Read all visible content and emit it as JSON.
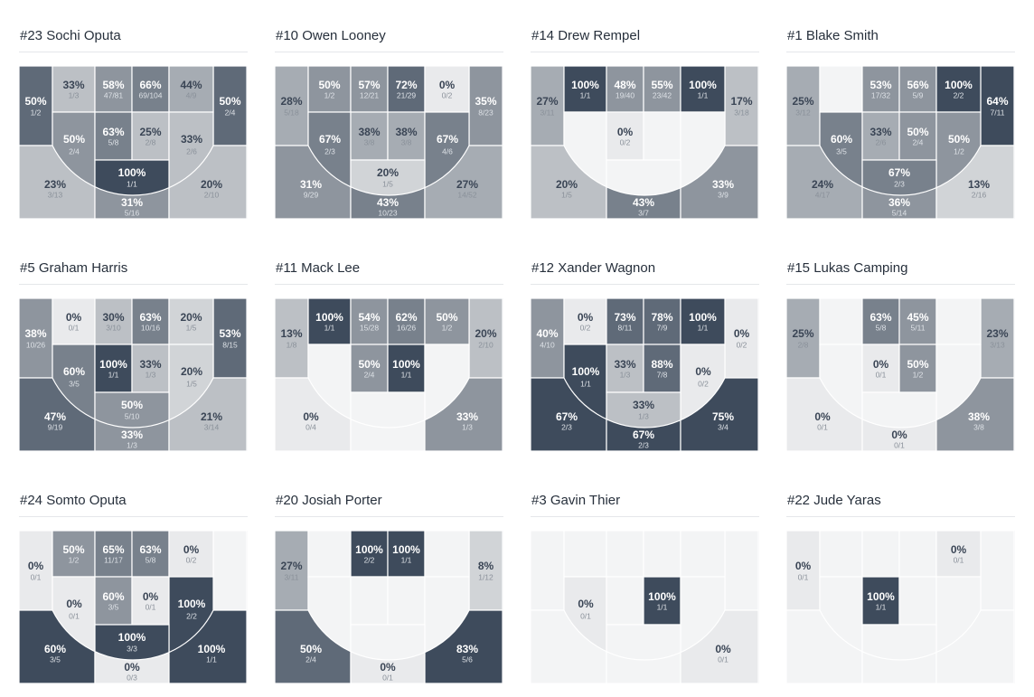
{
  "palette": {
    "0": "#f3f4f5",
    "1": "#e9eaec",
    "2": "#d1d4d7",
    "3": "#bcc0c5",
    "4": "#a6acb3",
    "5": "#8e959e",
    "6": "#78818c",
    "7": "#5f6a78",
    "8": "#3e4b5c"
  },
  "text_colors": {
    "dark_pct": "#3a4555",
    "dark_frac": "#8a919a",
    "light_pct": "#ffffff",
    "light_frac": "#dde1e6"
  },
  "players": [
    {
      "name": "#23 Sochi Oputa",
      "zones": {
        "lc": {
          "pct": "50%",
          "shots": "1/2",
          "shade": 7
        },
        "t1": {
          "pct": "33%",
          "shots": "1/3",
          "shade": 3
        },
        "t2": {
          "pct": "58%",
          "shots": "47/81",
          "shade": 5
        },
        "t3": {
          "pct": "66%",
          "shots": "69/104",
          "shade": 6
        },
        "t4": {
          "pct": "44%",
          "shots": "4/9",
          "shade": 4
        },
        "rc": {
          "pct": "50%",
          "shots": "2/4",
          "shade": 7
        },
        "lm": {
          "pct": "50%",
          "shots": "2/4",
          "shade": 5
        },
        "p1": {
          "pct": "63%",
          "shots": "5/8",
          "shade": 6
        },
        "p2": {
          "pct": "25%",
          "shots": "2/8",
          "shade": 3
        },
        "rm": {
          "pct": "33%",
          "shots": "2/6",
          "shade": 3
        },
        "cb": {
          "pct": "100%",
          "shots": "1/1",
          "shade": 8
        },
        "lw": {
          "pct": "23%",
          "shots": "3/13",
          "shade": 3
        },
        "tk": {
          "pct": "31%",
          "shots": "5/16",
          "shade": 5
        },
        "rw": {
          "pct": "20%",
          "shots": "2/10",
          "shade": 3
        }
      }
    },
    {
      "name": "#10 Owen Looney",
      "zones": {
        "lc": {
          "pct": "28%",
          "shots": "5/18",
          "shade": 4
        },
        "t1": {
          "pct": "50%",
          "shots": "1/2",
          "shade": 5
        },
        "t2": {
          "pct": "57%",
          "shots": "12/21",
          "shade": 5
        },
        "t3": {
          "pct": "72%",
          "shots": "21/29",
          "shade": 7
        },
        "t4": {
          "pct": "0%",
          "shots": "0/2",
          "shade": 1
        },
        "rc": {
          "pct": "35%",
          "shots": "8/23",
          "shade": 5
        },
        "lm": {
          "pct": "67%",
          "shots": "2/3",
          "shade": 6
        },
        "p1": {
          "pct": "38%",
          "shots": "3/8",
          "shade": 4
        },
        "p2": {
          "pct": "38%",
          "shots": "3/8",
          "shade": 4
        },
        "rm": {
          "pct": "67%",
          "shots": "4/6",
          "shade": 6
        },
        "cb": {
          "pct": "20%",
          "shots": "1/5",
          "shade": 2
        },
        "lw": {
          "pct": "31%",
          "shots": "9/29",
          "shade": 5
        },
        "tk": {
          "pct": "43%",
          "shots": "10/23",
          "shade": 6
        },
        "rw": {
          "pct": "27%",
          "shots": "14/52",
          "shade": 4
        }
      }
    },
    {
      "name": "#14 Drew Rempel",
      "zones": {
        "lc": {
          "pct": "27%",
          "shots": "3/11",
          "shade": 4
        },
        "t1": {
          "pct": "100%",
          "shots": "1/1",
          "shade": 8
        },
        "t2": {
          "pct": "48%",
          "shots": "19/40",
          "shade": 5
        },
        "t3": {
          "pct": "55%",
          "shots": "23/42",
          "shade": 5
        },
        "t4": {
          "pct": "100%",
          "shots": "1/1",
          "shade": 8
        },
        "rc": {
          "pct": "17%",
          "shots": "3/18",
          "shade": 3
        },
        "p1": {
          "pct": "0%",
          "shots": "0/2",
          "shade": 1
        },
        "lw": {
          "pct": "20%",
          "shots": "1/5",
          "shade": 3
        },
        "tk": {
          "pct": "43%",
          "shots": "3/7",
          "shade": 6
        },
        "rw": {
          "pct": "33%",
          "shots": "3/9",
          "shade": 5
        }
      }
    },
    {
      "name": "#1 Blake Smith",
      "zones": {
        "lc": {
          "pct": "25%",
          "shots": "3/12",
          "shade": 4
        },
        "t2": {
          "pct": "53%",
          "shots": "17/32",
          "shade": 5
        },
        "t3": {
          "pct": "56%",
          "shots": "5/9",
          "shade": 5
        },
        "t4": {
          "pct": "100%",
          "shots": "2/2",
          "shade": 8
        },
        "rc": {
          "pct": "64%",
          "shots": "7/11",
          "shade": 8
        },
        "lm": {
          "pct": "60%",
          "shots": "3/5",
          "shade": 6
        },
        "p1": {
          "pct": "33%",
          "shots": "2/6",
          "shade": 4
        },
        "p2": {
          "pct": "50%",
          "shots": "2/4",
          "shade": 5
        },
        "rm": {
          "pct": "50%",
          "shots": "1/2",
          "shade": 5
        },
        "cb": {
          "pct": "67%",
          "shots": "2/3",
          "shade": 6
        },
        "lw": {
          "pct": "24%",
          "shots": "4/17",
          "shade": 4
        },
        "tk": {
          "pct": "36%",
          "shots": "5/14",
          "shade": 5
        },
        "rw": {
          "pct": "13%",
          "shots": "2/16",
          "shade": 2
        }
      }
    },
    {
      "name": "#5 Graham Harris",
      "zones": {
        "lc": {
          "pct": "38%",
          "shots": "10/26",
          "shade": 5
        },
        "t1": {
          "pct": "0%",
          "shots": "0/1",
          "shade": 1
        },
        "t2": {
          "pct": "30%",
          "shots": "3/10",
          "shade": 3
        },
        "t3": {
          "pct": "63%",
          "shots": "10/16",
          "shade": 6
        },
        "t4": {
          "pct": "20%",
          "shots": "1/5",
          "shade": 2
        },
        "rc": {
          "pct": "53%",
          "shots": "8/15",
          "shade": 7
        },
        "lm": {
          "pct": "60%",
          "shots": "3/5",
          "shade": 6
        },
        "p1": {
          "pct": "100%",
          "shots": "1/1",
          "shade": 8
        },
        "p2": {
          "pct": "33%",
          "shots": "1/3",
          "shade": 3
        },
        "rm": {
          "pct": "20%",
          "shots": "1/5",
          "shade": 2
        },
        "cb": {
          "pct": "50%",
          "shots": "5/10",
          "shade": 5
        },
        "lw": {
          "pct": "47%",
          "shots": "9/19",
          "shade": 7
        },
        "tk": {
          "pct": "33%",
          "shots": "1/3",
          "shade": 5
        },
        "rw": {
          "pct": "21%",
          "shots": "3/14",
          "shade": 3
        }
      }
    },
    {
      "name": "#11 Mack Lee",
      "zones": {
        "lc": {
          "pct": "13%",
          "shots": "1/8",
          "shade": 3
        },
        "t1": {
          "pct": "100%",
          "shots": "1/1",
          "shade": 8
        },
        "t2": {
          "pct": "54%",
          "shots": "15/28",
          "shade": 5
        },
        "t3": {
          "pct": "62%",
          "shots": "16/26",
          "shade": 6
        },
        "t4": {
          "pct": "50%",
          "shots": "1/2",
          "shade": 5
        },
        "rc": {
          "pct": "20%",
          "shots": "2/10",
          "shade": 3
        },
        "p1": {
          "pct": "50%",
          "shots": "2/4",
          "shade": 5
        },
        "p2": {
          "pct": "100%",
          "shots": "1/1",
          "shade": 8
        },
        "lw": {
          "pct": "0%",
          "shots": "0/4",
          "shade": 1
        },
        "rw": {
          "pct": "33%",
          "shots": "1/3",
          "shade": 5
        }
      }
    },
    {
      "name": "#12 Xander Wagnon",
      "zones": {
        "lc": {
          "pct": "40%",
          "shots": "4/10",
          "shade": 5
        },
        "t1": {
          "pct": "0%",
          "shots": "0/2",
          "shade": 1
        },
        "t2": {
          "pct": "73%",
          "shots": "8/11",
          "shade": 7
        },
        "t3": {
          "pct": "78%",
          "shots": "7/9",
          "shade": 7
        },
        "t4": {
          "pct": "100%",
          "shots": "1/1",
          "shade": 8
        },
        "rc": {
          "pct": "0%",
          "shots": "0/2",
          "shade": 1
        },
        "lm": {
          "pct": "100%",
          "shots": "1/1",
          "shade": 8
        },
        "p1": {
          "pct": "33%",
          "shots": "1/3",
          "shade": 3
        },
        "p2": {
          "pct": "88%",
          "shots": "7/8",
          "shade": 7
        },
        "rm": {
          "pct": "0%",
          "shots": "0/2",
          "shade": 1
        },
        "cb": {
          "pct": "33%",
          "shots": "1/3",
          "shade": 3
        },
        "lw": {
          "pct": "67%",
          "shots": "2/3",
          "shade": 8
        },
        "tk": {
          "pct": "67%",
          "shots": "2/3",
          "shade": 8
        },
        "rw": {
          "pct": "75%",
          "shots": "3/4",
          "shade": 8
        }
      }
    },
    {
      "name": "#15 Lukas Camping",
      "zones": {
        "lc": {
          "pct": "25%",
          "shots": "2/8",
          "shade": 4
        },
        "t2": {
          "pct": "63%",
          "shots": "5/8",
          "shade": 6
        },
        "t3": {
          "pct": "45%",
          "shots": "5/11",
          "shade": 5
        },
        "rc": {
          "pct": "23%",
          "shots": "3/13",
          "shade": 4
        },
        "p1": {
          "pct": "0%",
          "shots": "0/1",
          "shade": 1
        },
        "p2": {
          "pct": "50%",
          "shots": "1/2",
          "shade": 5
        },
        "lw": {
          "pct": "0%",
          "shots": "0/1",
          "shade": 1
        },
        "tk": {
          "pct": "0%",
          "shots": "0/1",
          "shade": 1
        },
        "rw": {
          "pct": "38%",
          "shots": "3/8",
          "shade": 5
        }
      }
    },
    {
      "name": "#24 Somto Oputa",
      "zones": {
        "lc": {
          "pct": "0%",
          "shots": "0/1",
          "shade": 1
        },
        "t1": {
          "pct": "50%",
          "shots": "1/2",
          "shade": 5
        },
        "t2": {
          "pct": "65%",
          "shots": "11/17",
          "shade": 6
        },
        "t3": {
          "pct": "63%",
          "shots": "5/8",
          "shade": 6
        },
        "t4": {
          "pct": "0%",
          "shots": "0/2",
          "shade": 1
        },
        "lm": {
          "pct": "0%",
          "shots": "0/1",
          "shade": 1
        },
        "p1": {
          "pct": "60%",
          "shots": "3/5",
          "shade": 5
        },
        "p2": {
          "pct": "0%",
          "shots": "0/1",
          "shade": 1
        },
        "rm": {
          "pct": "100%",
          "shots": "2/2",
          "shade": 8
        },
        "cb": {
          "pct": "100%",
          "shots": "3/3",
          "shade": 8
        },
        "lw": {
          "pct": "60%",
          "shots": "3/5",
          "shade": 8
        },
        "tk": {
          "pct": "0%",
          "shots": "0/3",
          "shade": 1
        },
        "rw": {
          "pct": "100%",
          "shots": "1/1",
          "shade": 8
        }
      }
    },
    {
      "name": "#20 Josiah Porter",
      "zones": {
        "lc": {
          "pct": "27%",
          "shots": "3/11",
          "shade": 4
        },
        "t2": {
          "pct": "100%",
          "shots": "2/2",
          "shade": 8
        },
        "t3": {
          "pct": "100%",
          "shots": "1/1",
          "shade": 8
        },
        "rc": {
          "pct": "8%",
          "shots": "1/12",
          "shade": 2
        },
        "lw": {
          "pct": "50%",
          "shots": "2/4",
          "shade": 7
        },
        "tk": {
          "pct": "0%",
          "shots": "0/1",
          "shade": 1
        },
        "rw": {
          "pct": "83%",
          "shots": "5/6",
          "shade": 8
        }
      }
    },
    {
      "name": "#3 Gavin Thier",
      "zones": {
        "lm": {
          "pct": "0%",
          "shots": "0/1",
          "shade": 1
        },
        "p2": {
          "pct": "100%",
          "shots": "1/1",
          "shade": 8
        },
        "rw": {
          "pct": "0%",
          "shots": "0/1",
          "shade": 1
        }
      }
    },
    {
      "name": "#22 Jude Yaras",
      "zones": {
        "lc": {
          "pct": "0%",
          "shots": "0/1",
          "shade": 1
        },
        "t4": {
          "pct": "0%",
          "shots": "0/1",
          "shade": 1
        },
        "p1": {
          "pct": "100%",
          "shots": "1/1",
          "shade": 8
        }
      }
    }
  ]
}
